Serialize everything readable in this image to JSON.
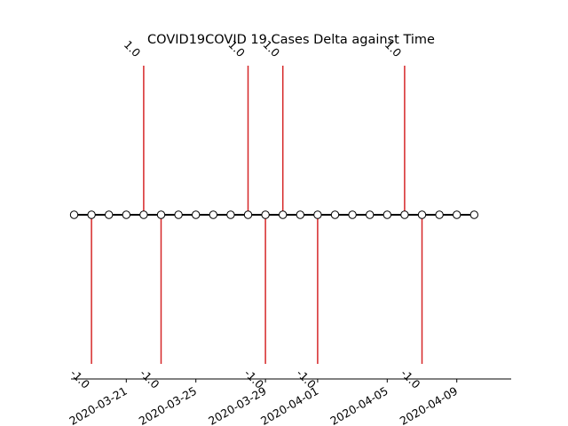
{
  "chart_data": {
    "type": "timeline",
    "title": "COVID19COVID 19 Cases Delta against Time",
    "xlabel": "",
    "ylabel": "",
    "grid": false,
    "legend": "none",
    "x_ticks": [
      "2020-03-21",
      "2020-03-25",
      "2020-03-29",
      "2020-04-01",
      "2020-04-05",
      "2020-04-09"
    ],
    "points": [
      {
        "date": "2020-03-18",
        "delta": 0
      },
      {
        "date": "2020-03-19",
        "delta": -1.0
      },
      {
        "date": "2020-03-20",
        "delta": 0
      },
      {
        "date": "2020-03-21",
        "delta": 0
      },
      {
        "date": "2020-03-22",
        "delta": 1.0
      },
      {
        "date": "2020-03-23",
        "delta": -1.0
      },
      {
        "date": "2020-03-24",
        "delta": 0
      },
      {
        "date": "2020-03-25",
        "delta": 0
      },
      {
        "date": "2020-03-26",
        "delta": 0
      },
      {
        "date": "2020-03-27",
        "delta": 0
      },
      {
        "date": "2020-03-28",
        "delta": 1.0
      },
      {
        "date": "2020-03-29",
        "delta": -1.0
      },
      {
        "date": "2020-03-30",
        "delta": 1.0
      },
      {
        "date": "2020-03-31",
        "delta": 0
      },
      {
        "date": "2020-04-01",
        "delta": -1.0
      },
      {
        "date": "2020-04-02",
        "delta": 0
      },
      {
        "date": "2020-04-03",
        "delta": 0
      },
      {
        "date": "2020-04-04",
        "delta": 0
      },
      {
        "date": "2020-04-05",
        "delta": 0
      },
      {
        "date": "2020-04-06",
        "delta": 1.0
      },
      {
        "date": "2020-04-07",
        "delta": -1.0
      },
      {
        "date": "2020-04-08",
        "delta": 0
      },
      {
        "date": "2020-04-09",
        "delta": 0
      },
      {
        "date": "2020-04-10",
        "delta": 0
      }
    ],
    "colors": {
      "stem": "#d62728",
      "baseline": "#000000",
      "marker_fill": "#ffffff",
      "marker_edge": "#000000"
    }
  }
}
